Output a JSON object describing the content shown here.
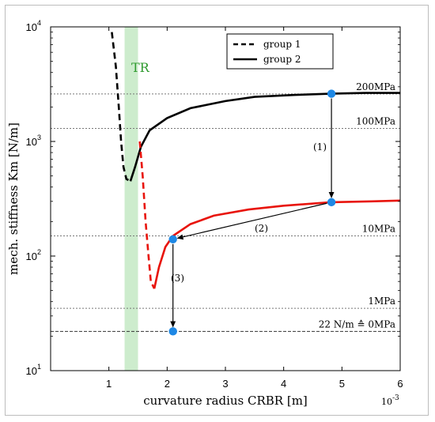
{
  "chart_data": {
    "type": "line",
    "xlabel": "curvature radius CRBR [m]",
    "x_multiplier": "10-3",
    "ylabel": "mech. stiffness Km [N/m]",
    "xlim": [
      0,
      6
    ],
    "ylim": [
      10,
      10000
    ],
    "y_scale": "log",
    "x_ticks": [
      1,
      2,
      3,
      4,
      5,
      6
    ],
    "y_ticks": [
      {
        "value": 10,
        "base": "10",
        "exp": "1"
      },
      {
        "value": 100,
        "base": "10",
        "exp": "2"
      },
      {
        "value": 1000,
        "base": "10",
        "exp": "3"
      },
      {
        "value": 10000,
        "base": "10",
        "exp": "4"
      }
    ],
    "grid": false,
    "legend": {
      "placement": "top-right",
      "entries": [
        {
          "label": "group 1",
          "style": "dashed"
        },
        {
          "label": "group 2",
          "style": "solid"
        }
      ]
    },
    "band": {
      "label": "TR",
      "x": [
        1.27,
        1.5
      ],
      "color": "#cdeccd",
      "label_color": "#2e9a2e"
    },
    "reference_lines": [
      {
        "label": "200MPa",
        "y": 2600,
        "style": "dotted"
      },
      {
        "label": "100MPa",
        "y": 1300,
        "style": "dotted"
      },
      {
        "label": "10MPa",
        "y": 150,
        "style": "dotted"
      },
      {
        "label": "1MPa",
        "y": 35,
        "style": "dotted"
      },
      {
        "label": "22 N/m ≙ 0MPa",
        "y": 22,
        "style": "dashed"
      }
    ],
    "series": [
      {
        "color": "#000000",
        "dashed_points": [
          [
            1.05,
            9000
          ],
          [
            1.12,
            4500
          ],
          [
            1.17,
            2000
          ],
          [
            1.21,
            1000
          ],
          [
            1.25,
            600
          ],
          [
            1.3,
            470
          ],
          [
            1.37,
            450
          ]
        ],
        "solid_points": [
          [
            1.37,
            450
          ],
          [
            1.45,
            600
          ],
          [
            1.55,
            900
          ],
          [
            1.7,
            1250
          ],
          [
            2.0,
            1600
          ],
          [
            2.4,
            1950
          ],
          [
            3.0,
            2250
          ],
          [
            3.5,
            2450
          ],
          [
            4.2,
            2550
          ],
          [
            4.8,
            2610
          ],
          [
            5.4,
            2650
          ],
          [
            6.0,
            2650
          ]
        ]
      },
      {
        "color": "#e8140c",
        "dashed_points": [
          [
            1.53,
            1000
          ],
          [
            1.58,
            500
          ],
          [
            1.63,
            200
          ],
          [
            1.68,
            100
          ],
          [
            1.72,
            60
          ],
          [
            1.78,
            52
          ]
        ],
        "solid_points": [
          [
            1.78,
            52
          ],
          [
            1.86,
            80
          ],
          [
            1.97,
            120
          ],
          [
            2.1,
            150
          ],
          [
            2.4,
            190
          ],
          [
            2.8,
            225
          ],
          [
            3.4,
            255
          ],
          [
            4.0,
            275
          ],
          [
            4.8,
            295
          ],
          [
            5.5,
            300
          ],
          [
            6.0,
            305
          ]
        ]
      }
    ],
    "markers": [
      {
        "x": 4.82,
        "y": 2610,
        "color": "#1e88e5"
      },
      {
        "x": 4.82,
        "y": 295,
        "color": "#1e88e5"
      },
      {
        "x": 2.1,
        "y": 140,
        "color": "#1e88e5"
      },
      {
        "x": 2.1,
        "y": 22,
        "color": "#1e88e5"
      }
    ],
    "arrows": [
      {
        "label": "(1)",
        "from": [
          4.82,
          2610
        ],
        "to": [
          4.82,
          295
        ]
      },
      {
        "label": "(2)",
        "from": [
          4.82,
          295
        ],
        "to": [
          2.1,
          140
        ]
      },
      {
        "label": "(3)",
        "from": [
          2.1,
          140
        ],
        "to": [
          2.1,
          22
        ]
      }
    ]
  }
}
